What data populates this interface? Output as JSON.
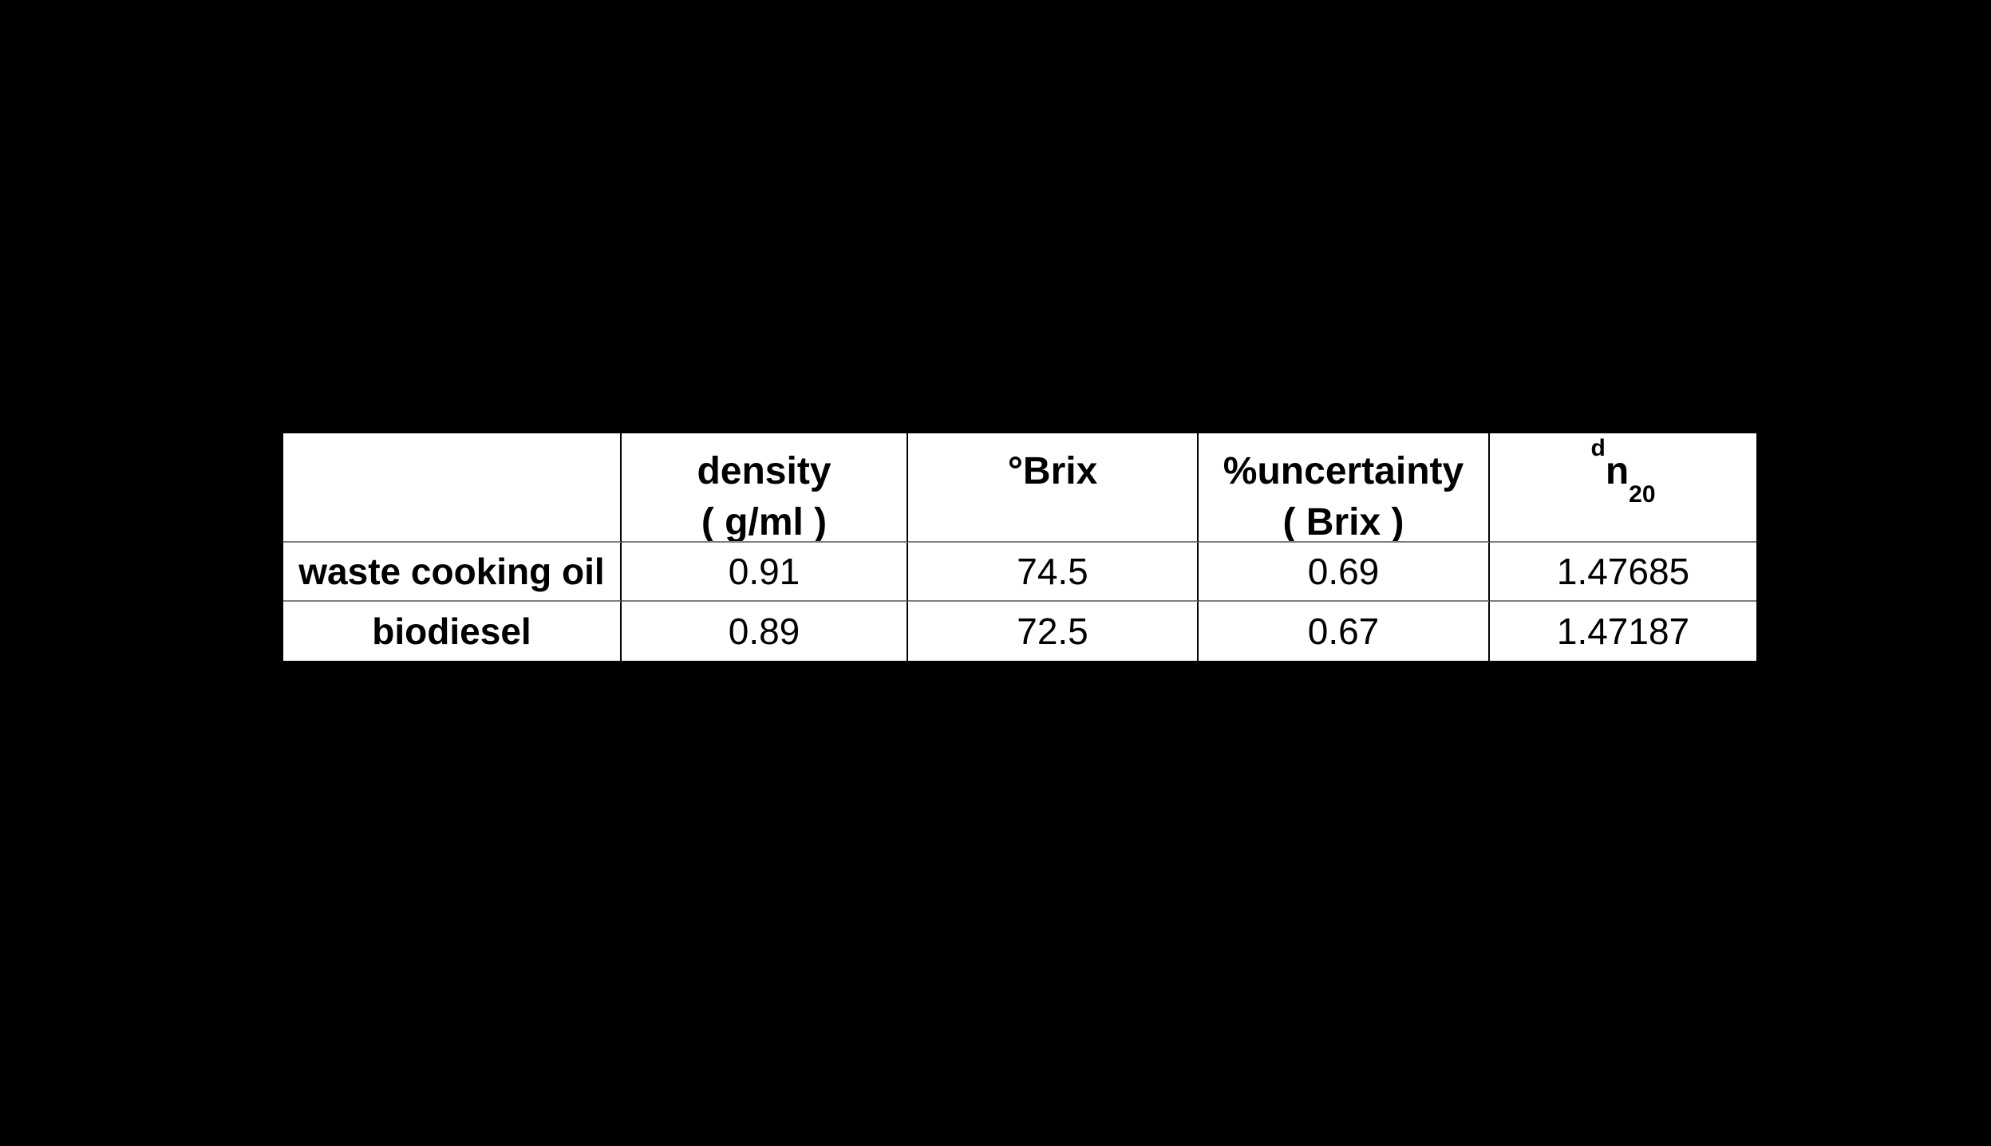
{
  "background_color": "#000000",
  "table": {
    "border_outer_color": "#000000",
    "border_vertical_color": "#000000",
    "border_horizontal_color": "#7f7f7f",
    "columns": [
      {
        "id": "substance",
        "line1": "",
        "line2": ""
      },
      {
        "id": "density",
        "line1": "density",
        "line2": "( g/ml )"
      },
      {
        "id": "brix",
        "line1": "°Brix",
        "line2": ""
      },
      {
        "id": "uncertainty",
        "line1": "%uncertainty",
        "line2": "( Brix )"
      },
      {
        "id": "refractive-index",
        "sup": "d",
        "base": "n",
        "sub": "20"
      }
    ],
    "rows": [
      {
        "label": "waste cooking oil",
        "density": "0.91",
        "brix": "74.5",
        "uncertainty": "0.69",
        "refractive_index": "1.47685"
      },
      {
        "label": "biodiesel",
        "density": "0.89",
        "brix": "72.5",
        "uncertainty": "0.67",
        "refractive_index": "1.47187"
      }
    ]
  },
  "chart_data": {
    "type": "table",
    "title": "",
    "columns": [
      "",
      "density ( g/ml )",
      "°Brix",
      "%uncertainty ( Brix )",
      "ᵈn₂₀"
    ],
    "rows": [
      [
        "waste cooking oil",
        0.91,
        74.5,
        0.69,
        1.47685
      ],
      [
        "biodiesel",
        0.89,
        72.5,
        0.67,
        1.47187
      ]
    ],
    "layout": {
      "background": "black",
      "table_text_color": "black",
      "header_bold": true,
      "row_labels_bold": true
    }
  }
}
